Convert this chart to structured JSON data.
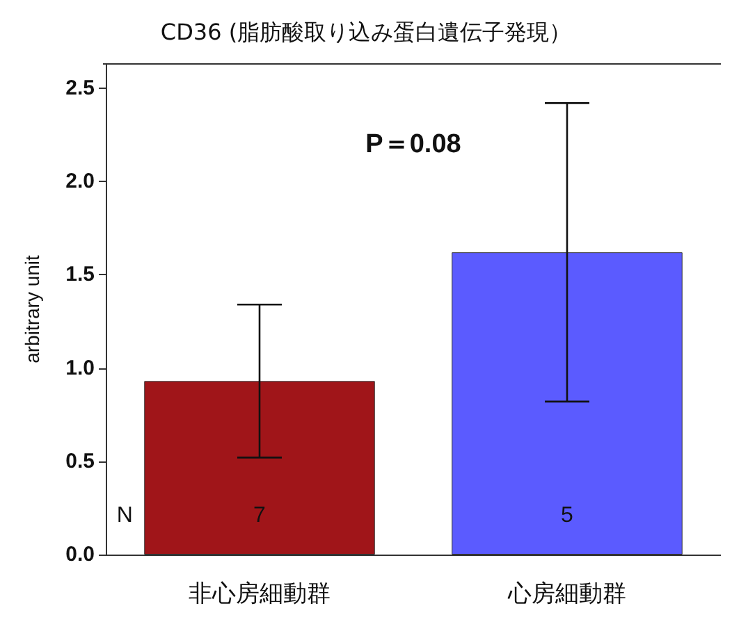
{
  "chart_data": {
    "type": "bar",
    "title": "CD36 (脂肪酸取り込み蛋白遺伝子発現）",
    "ylabel": "arbitrary unit",
    "categories": [
      "非心房細動群",
      "心房細動群"
    ],
    "values": [
      0.93,
      1.62
    ],
    "colors": [
      "#a01519",
      "#5b5bff"
    ],
    "errors": [
      [
        0.52,
        1.34
      ],
      [
        0.82,
        2.42
      ]
    ],
    "ylim": [
      0,
      2.63
    ],
    "yticks": [
      {
        "value": 0,
        "label": "0.0"
      },
      0.5,
      {
        "value": 1,
        "label": "1.0"
      },
      1.5,
      {
        "value": 2,
        "label": "2.0"
      },
      2.5
    ],
    "grid": false,
    "annotations": [
      "P＝0.08",
      "N",
      "7",
      "5"
    ]
  }
}
